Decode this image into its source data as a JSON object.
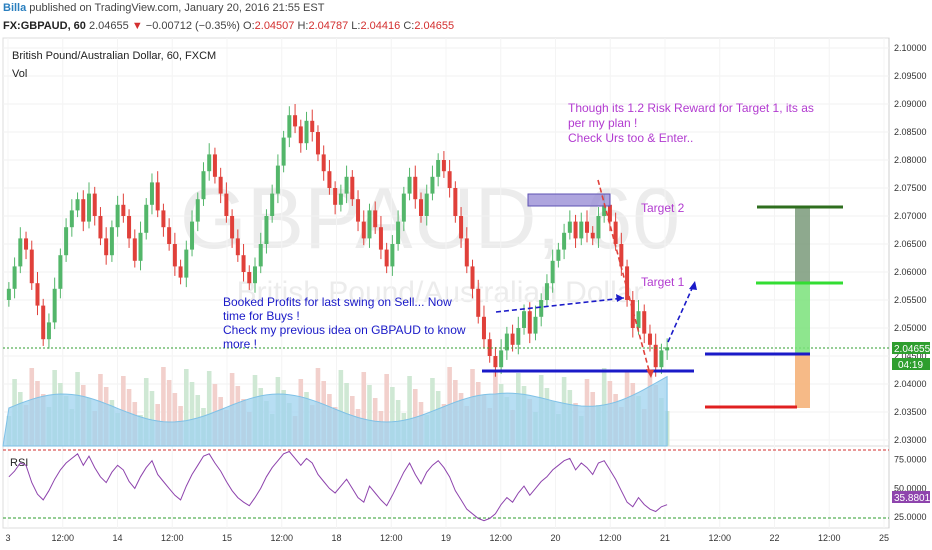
{
  "header": {
    "author": "Billa",
    "published": " published on TradingView.com, January 20, 2016 21:55 EST",
    "symbol": "FX:GBPAUD, 60",
    "last": "2.04655",
    "change": "−0.00712 (−0.35%)",
    "open_label": "O:",
    "open": "2.04507",
    "high_label": "H:",
    "high": "2.04787",
    "low_label": "L:",
    "low": "2.04416",
    "close_label": "C:",
    "close": "2.04655"
  },
  "pane": {
    "title": "British Pound/Australian Dollar, 60, FXCM",
    "vol_label": "Vol",
    "watermark_big": "GBPAUD, 60",
    "watermark_small": "British Pound/Australian Dollar",
    "rsi_label": "RSI"
  },
  "annotations": {
    "note_top": [
      "Though its 1.2 Risk Reward for Target 1, its as",
      "per my plan !",
      "Check Urs too & Enter.."
    ],
    "note_mid": [
      "Booked Profits for last swing on Sell... Now",
      "time for Buys !",
      "Check my previous idea on GBPAUD to know",
      "more !"
    ],
    "target1": "Target 1",
    "target2": "Target 2"
  },
  "price_badges": {
    "last_price": "2.04655",
    "countdown": "04:19",
    "rsi_value": "35.8801"
  },
  "colors": {
    "up": "#53b66a",
    "down": "#e0403a",
    "annotation_purple": "#b23bd0",
    "annotation_blue": "#1a1ac8",
    "volume_area": "#9fd3ef",
    "rsi_line": "#8e44ad",
    "rsi_bound": "#d32f2f",
    "rsi_lower_bound": "#2e9e2e"
  },
  "chart_data": {
    "type": "candlestick",
    "ylim": [
      2.03,
      2.1
    ],
    "price_ticks": [
      "2.10000",
      "2.09500",
      "2.09000",
      "2.08500",
      "2.08000",
      "2.07500",
      "2.07000",
      "2.06500",
      "2.06000",
      "2.05500",
      "2.05000",
      "2.04500",
      "2.04000",
      "2.03500",
      "2.03000"
    ],
    "x_ticks": [
      "3",
      "12:00",
      "14",
      "12:00",
      "15",
      "12:00",
      "18",
      "12:00",
      "19",
      "12:00",
      "20",
      "12:00",
      "21",
      "12:00",
      "22",
      "12:00",
      "25"
    ],
    "rsi_ticks": [
      "75.0000",
      "50.0000",
      "25.0000"
    ],
    "rsi_bounds": [
      70,
      30
    ],
    "candle_closes": [
      2.057,
      2.061,
      2.066,
      2.064,
      2.058,
      2.054,
      2.048,
      2.051,
      2.057,
      2.063,
      2.068,
      2.071,
      2.073,
      2.069,
      2.074,
      2.07,
      2.066,
      2.063,
      2.068,
      2.072,
      2.07,
      2.066,
      2.062,
      2.067,
      2.072,
      2.076,
      2.071,
      2.068,
      2.065,
      2.061,
      2.059,
      2.064,
      2.069,
      2.073,
      2.078,
      2.081,
      2.077,
      2.074,
      2.07,
      2.066,
      2.063,
      2.06,
      2.058,
      2.061,
      2.065,
      2.07,
      2.074,
      2.079,
      2.084,
      2.088,
      2.086,
      2.083,
      2.087,
      2.085,
      2.081,
      2.078,
      2.075,
      2.072,
      2.074,
      2.077,
      2.073,
      2.069,
      2.066,
      2.071,
      2.068,
      2.064,
      2.061,
      2.065,
      2.069,
      2.074,
      2.077,
      2.073,
      2.07,
      2.074,
      2.077,
      2.08,
      2.078,
      2.075,
      2.07,
      2.066,
      2.061,
      2.057,
      2.052,
      2.048,
      2.045,
      2.043,
      2.046,
      2.049,
      2.047,
      2.05,
      2.053,
      2.049,
      2.052,
      2.055,
      2.058,
      2.062,
      2.064,
      2.067,
      2.069,
      2.066,
      2.069,
      2.067,
      2.066,
      2.07,
      2.072,
      2.069,
      2.065,
      2.061,
      2.055,
      2.05,
      2.053,
      2.049,
      2.047,
      2.043,
      2.046,
      2.04655
    ],
    "rsi": [
      60,
      65,
      72,
      70,
      55,
      45,
      40,
      48,
      58,
      66,
      72,
      76,
      80,
      70,
      78,
      68,
      60,
      55,
      64,
      70,
      66,
      56,
      50,
      60,
      68,
      74,
      62,
      56,
      50,
      44,
      40,
      52,
      62,
      70,
      78,
      80,
      72,
      65,
      56,
      48,
      42,
      38,
      35,
      42,
      50,
      60,
      68,
      74,
      80,
      82,
      76,
      70,
      76,
      72,
      62,
      56,
      50,
      46,
      52,
      58,
      50,
      42,
      38,
      52,
      46,
      40,
      35,
      44,
      54,
      64,
      72,
      62,
      54,
      64,
      70,
      74,
      68,
      60,
      48,
      40,
      32,
      28,
      24,
      22,
      24,
      28,
      36,
      42,
      38,
      46,
      52,
      44,
      50,
      56,
      60,
      66,
      70,
      74,
      76,
      66,
      72,
      68,
      62,
      72,
      74,
      66,
      58,
      48,
      38,
      34,
      42,
      36,
      32,
      30,
      34,
      35.88
    ]
  }
}
